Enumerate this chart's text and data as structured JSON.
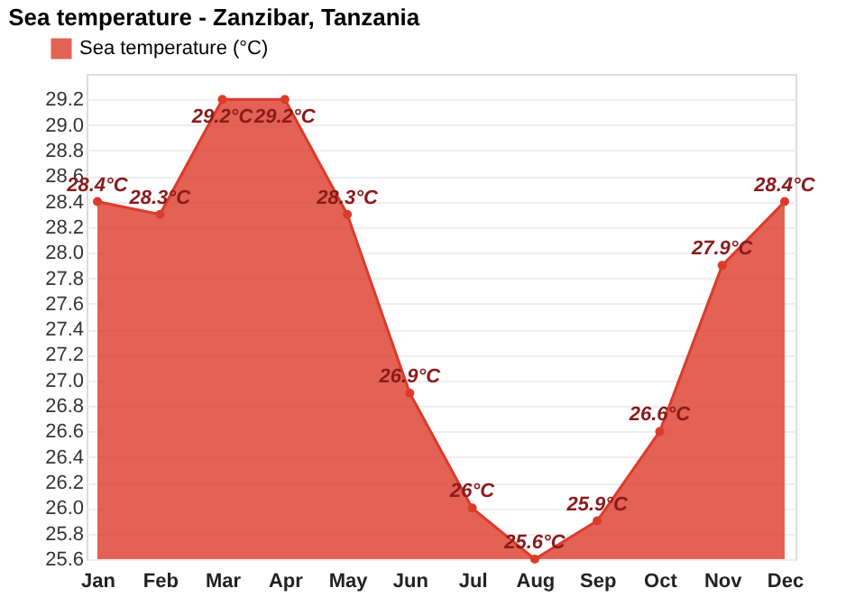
{
  "chart_data": {
    "type": "area",
    "title": "Sea temperature - Zanzibar, Tanzania",
    "categories": [
      "Jan",
      "Feb",
      "Mar",
      "Apr",
      "May",
      "Jun",
      "Jul",
      "Aug",
      "Sep",
      "Oct",
      "Nov",
      "Dec"
    ],
    "series": [
      {
        "name": "Sea temperature (°C)",
        "color": "#dc3b2a",
        "values": [
          28.4,
          28.3,
          29.2,
          29.2,
          28.3,
          26.9,
          26.0,
          25.6,
          25.9,
          26.6,
          27.9,
          28.4
        ],
        "value_labels": [
          "28.4°C",
          "28.3°C",
          "29.2°C",
          "29.2°C",
          "28.3°C",
          "26.9°C",
          "26°C",
          "25.6°C",
          "25.9°C",
          "26.6°C",
          "27.9°C",
          "28.4°C"
        ]
      }
    ],
    "ylim": [
      25.6,
      29.4
    ],
    "yticks": [
      25.6,
      25.8,
      {
        "value": 26,
        "label": "26.0"
      },
      26.2,
      26.4,
      26.6,
      26.8,
      {
        "value": 27,
        "label": "27.0"
      },
      27.2,
      27.4,
      27.6,
      27.8,
      {
        "value": 28,
        "label": "28.0"
      },
      28.2,
      28.4,
      28.6,
      28.8,
      {
        "value": 29,
        "label": "29.0"
      },
      29.2
    ],
    "grid": "y",
    "legend": "top left",
    "marker": "circle",
    "line_style": "solid"
  }
}
